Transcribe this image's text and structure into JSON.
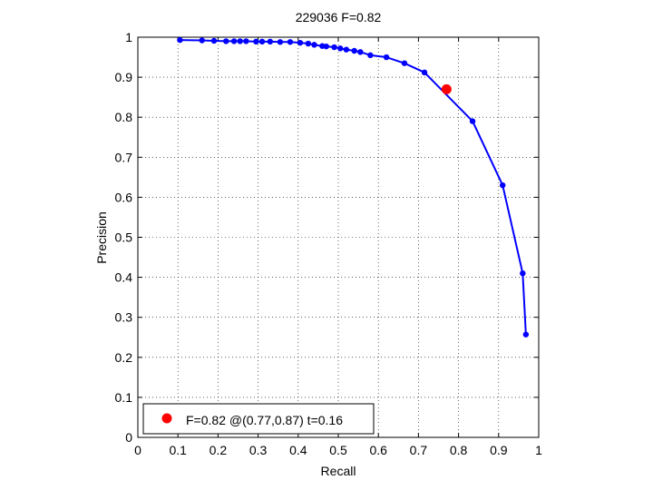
{
  "chart_data": {
    "type": "line",
    "title": "229036 F=0.82",
    "xlabel": "Recall",
    "ylabel": "Precision",
    "xlim": [
      0,
      1
    ],
    "ylim": [
      0,
      1
    ],
    "xticks": [
      "0",
      "0.1",
      "0.2",
      "0.3",
      "0.4",
      "0.5",
      "0.6",
      "0.7",
      "0.8",
      "0.9",
      "1"
    ],
    "yticks": [
      "0",
      "0.1",
      "0.2",
      "0.3",
      "0.4",
      "0.5",
      "0.6",
      "0.7",
      "0.8",
      "0.9",
      "1"
    ],
    "grid": true,
    "legend_position": "bottom-left",
    "series": [
      {
        "color": "#0000ff",
        "x": [
          0.105,
          0.16,
          0.19,
          0.22,
          0.24,
          0.255,
          0.27,
          0.295,
          0.31,
          0.33,
          0.355,
          0.38,
          0.405,
          0.425,
          0.44,
          0.46,
          0.47,
          0.49,
          0.505,
          0.52,
          0.54,
          0.555,
          0.58,
          0.62,
          0.665,
          0.715,
          0.835,
          0.91,
          0.96,
          0.968
        ],
        "y": [
          0.993,
          0.992,
          0.991,
          0.99,
          0.99,
          0.99,
          0.99,
          0.989,
          0.989,
          0.989,
          0.988,
          0.988,
          0.986,
          0.984,
          0.981,
          0.978,
          0.977,
          0.975,
          0.972,
          0.969,
          0.966,
          0.963,
          0.955,
          0.95,
          0.935,
          0.912,
          0.79,
          0.63,
          0.41,
          0.257
        ]
      }
    ],
    "highlight_point": {
      "x": 0.77,
      "y": 0.87,
      "color": "#ff0000"
    },
    "legend": {
      "label": "F=0.82 @(0.77,0.87) t=0.16",
      "marker_color": "#ff0000"
    }
  }
}
